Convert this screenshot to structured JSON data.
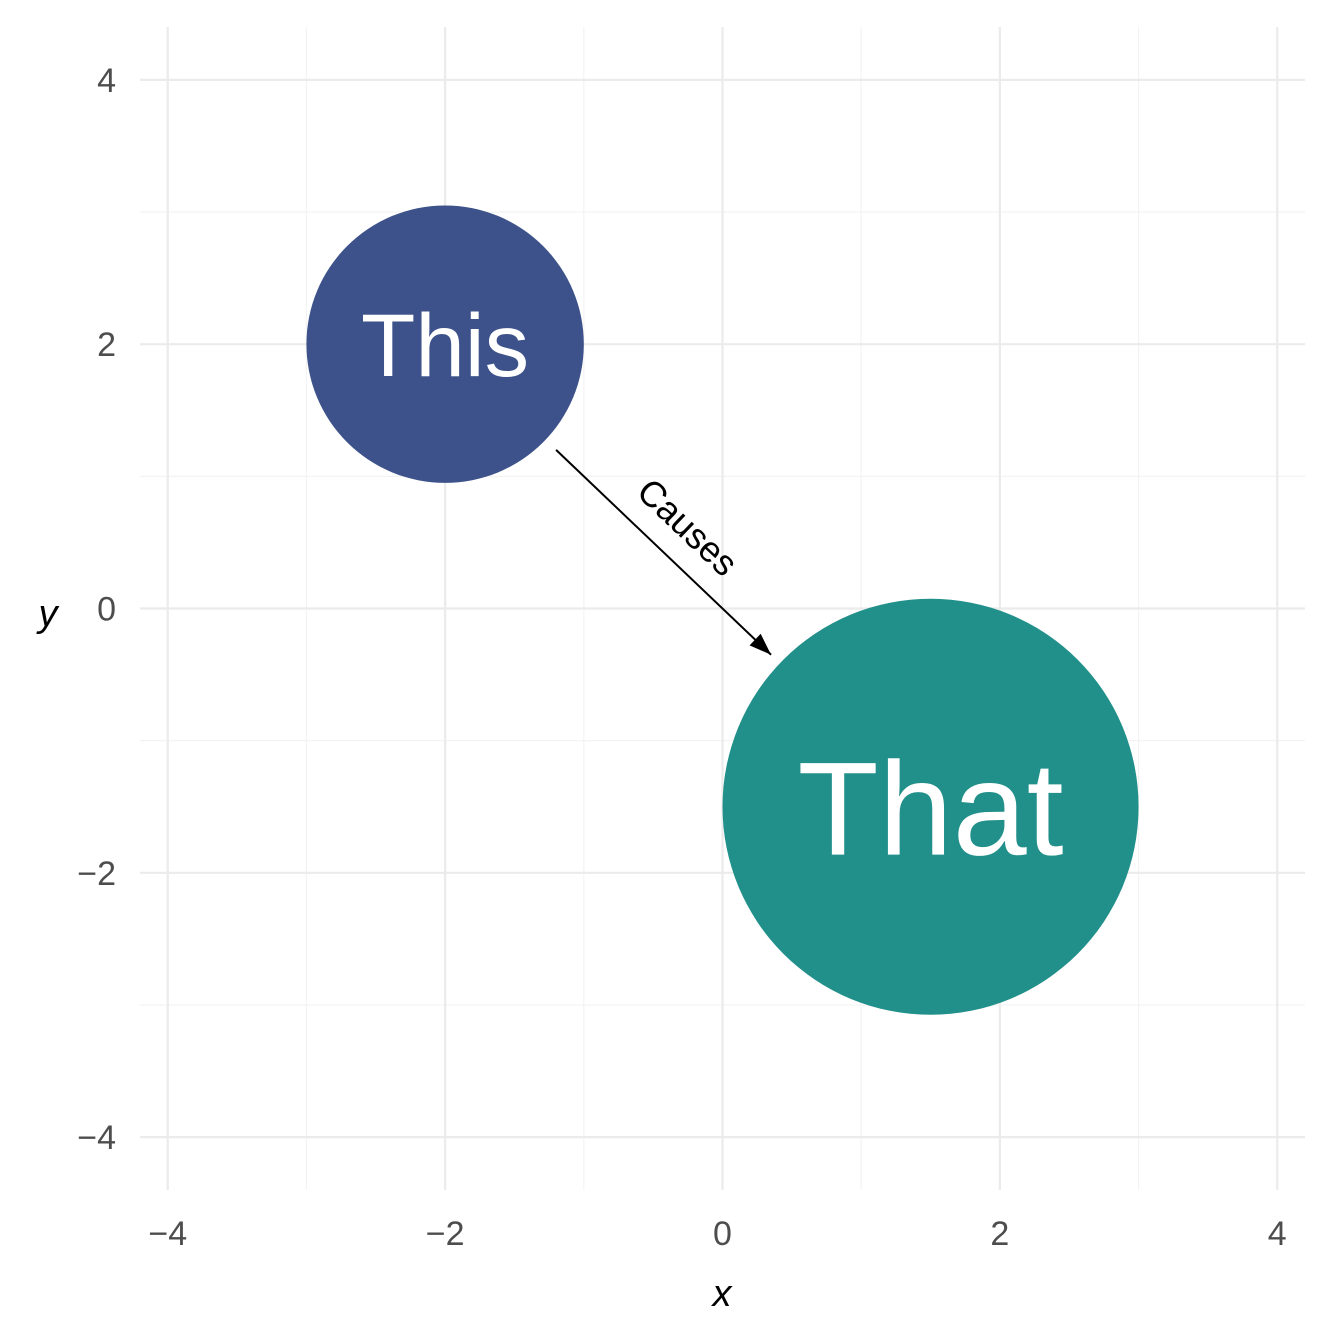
{
  "chart_data": {
    "type": "scatter",
    "xlabel": "x",
    "ylabel": "y",
    "xlim": [
      -4.2,
      4.2
    ],
    "ylim": [
      -4.4,
      4.4
    ],
    "x_ticks": [
      -4,
      -2,
      0,
      2,
      4
    ],
    "y_ticks": [
      -4,
      -2,
      0,
      2,
      4
    ],
    "x_tick_labels": [
      "−4",
      "−2",
      "0",
      "2",
      "4"
    ],
    "y_tick_labels": [
      "−4",
      "−2",
      "0",
      "2",
      "4"
    ],
    "x_minor": [
      -3,
      -1,
      1,
      3
    ],
    "y_minor": [
      -3,
      -1,
      1,
      3
    ],
    "grid": true,
    "nodes": [
      {
        "label": "This",
        "x": -2,
        "y": 2,
        "radius": 1,
        "color": "#3d528a"
      },
      {
        "label": "That",
        "x": 1.5,
        "y": -1.5,
        "radius": 1.5,
        "color": "#22908a"
      }
    ],
    "edges": [
      {
        "from": "This",
        "to": "That",
        "label": "Causes",
        "x_start": -1.2,
        "y_start": 1.2,
        "x_end": 0.35,
        "y_end": -0.35,
        "color": "#000000"
      }
    ]
  }
}
